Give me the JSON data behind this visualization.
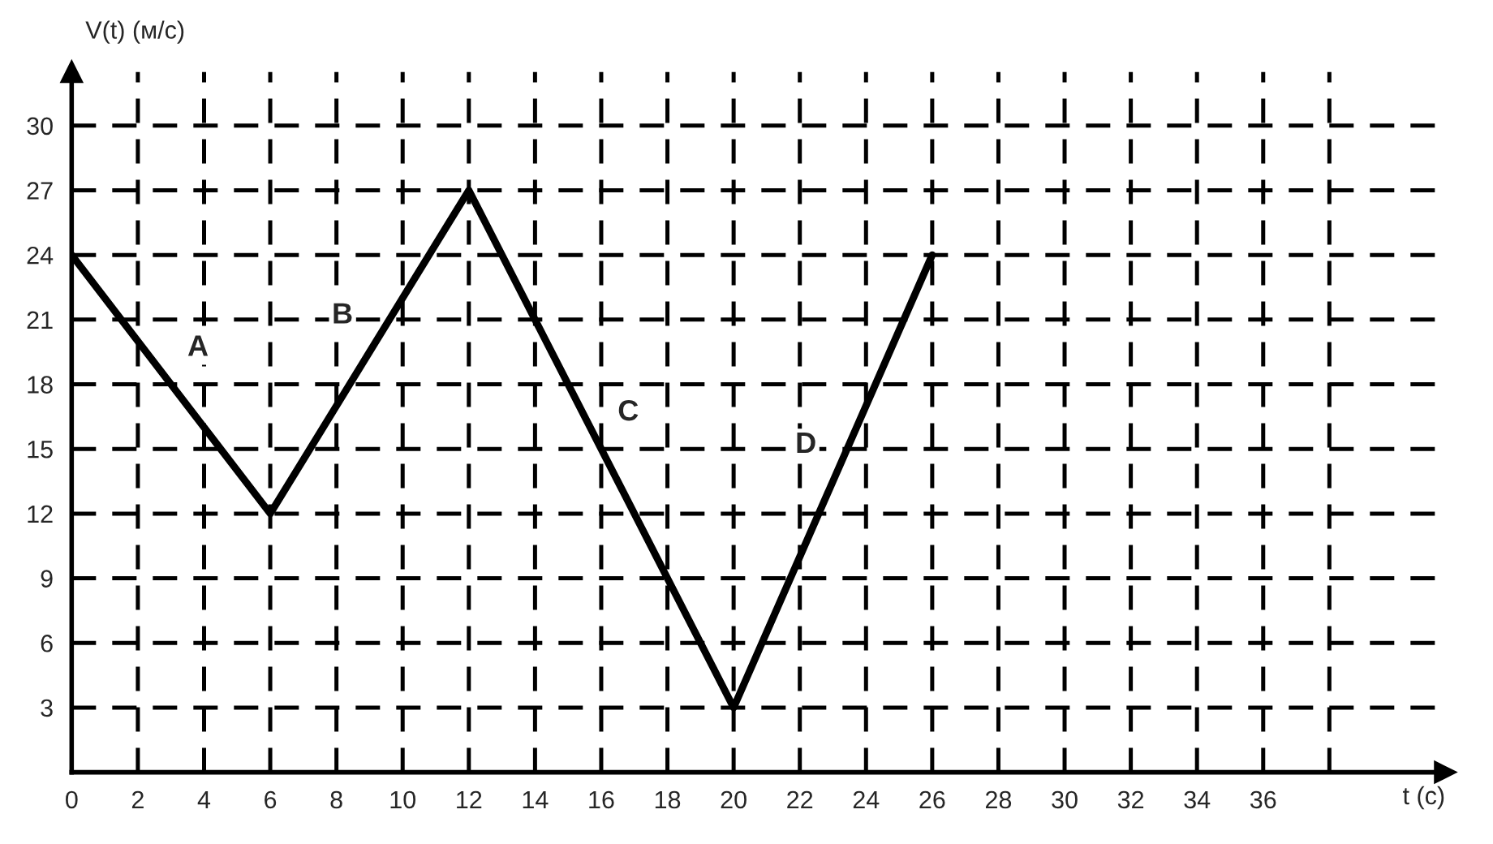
{
  "chart_data": {
    "type": "line",
    "xlabel": "t (с)",
    "ylabel": "V(t) (м/с)",
    "x": [
      0,
      6,
      12,
      20,
      26
    ],
    "series": [
      {
        "color": "#000000",
        "values": [
          24,
          12,
          27,
          3,
          24
        ]
      }
    ],
    "xlim": [
      0,
      41.5
    ],
    "ylim": [
      0,
      32.5
    ],
    "xticks": [
      0,
      2,
      4,
      6,
      8,
      10,
      12,
      14,
      16,
      18,
      20,
      22,
      24,
      26,
      28,
      30,
      32,
      34,
      36,
      {
        "value": 38,
        "label": null
      }
    ],
    "yticks": [
      3,
      6,
      9,
      12,
      15,
      18,
      21,
      24,
      27,
      30
    ],
    "grid": true,
    "line_style": "solid",
    "marker": "none",
    "annotations": [
      "A",
      "B",
      "C",
      "D"
    ]
  }
}
